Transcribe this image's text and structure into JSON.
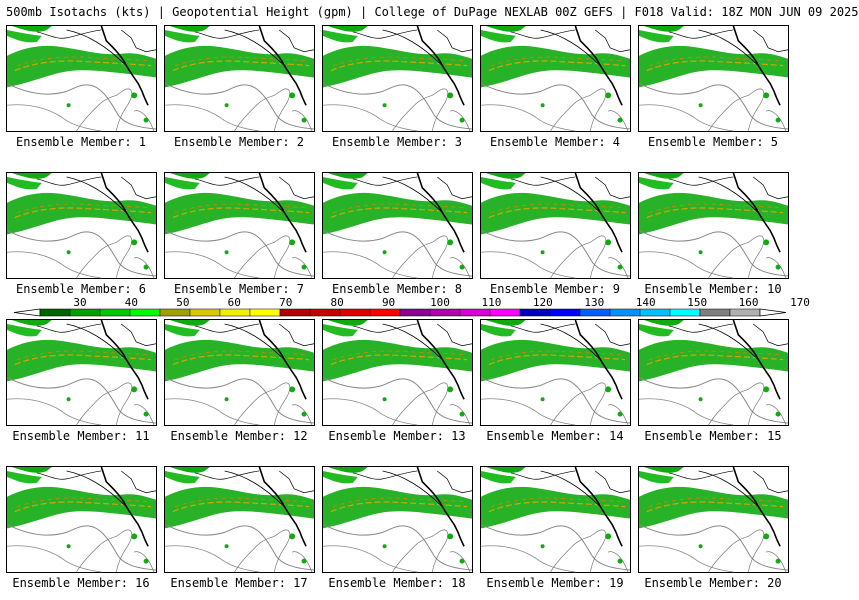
{
  "header": {
    "title": "500mb Isotachs (kts) | Geopotential Height (gpm) | College of DuPage NEXLAB   00Z GEFS | F018 Valid: 18Z MON JUN 09 2025"
  },
  "members": [
    {
      "label": "Ensemble Member: 1"
    },
    {
      "label": "Ensemble Member: 2"
    },
    {
      "label": "Ensemble Member: 3"
    },
    {
      "label": "Ensemble Member: 4"
    },
    {
      "label": "Ensemble Member: 5"
    },
    {
      "label": "Ensemble Member: 6"
    },
    {
      "label": "Ensemble Member: 7"
    },
    {
      "label": "Ensemble Member: 8"
    },
    {
      "label": "Ensemble Member: 9"
    },
    {
      "label": "Ensemble Member: 10"
    },
    {
      "label": "Ensemble Member: 11"
    },
    {
      "label": "Ensemble Member: 12"
    },
    {
      "label": "Ensemble Member: 13"
    },
    {
      "label": "Ensemble Member: 14"
    },
    {
      "label": "Ensemble Member: 15"
    },
    {
      "label": "Ensemble Member: 16"
    },
    {
      "label": "Ensemble Member: 17"
    },
    {
      "label": "Ensemble Member: 18"
    },
    {
      "label": "Ensemble Member: 19"
    },
    {
      "label": "Ensemble Member: 20"
    }
  ],
  "legend": {
    "ticks": [
      "30",
      "40",
      "50",
      "60",
      "70",
      "80",
      "90",
      "100",
      "110",
      "120",
      "130",
      "140",
      "150",
      "160",
      "170"
    ],
    "colors": [
      "#006400",
      "#00a000",
      "#00c800",
      "#00ff00",
      "#a0a000",
      "#d8c800",
      "#f0f000",
      "#ffff00",
      "#b40000",
      "#c80000",
      "#e00000",
      "#ff0000",
      "#900090",
      "#b000b0",
      "#d800d8",
      "#ff00ff",
      "#0000c0",
      "#0000ff",
      "#0060ff",
      "#0090ff",
      "#00c0ff",
      "#00ffff",
      "#808080",
      "#b0b0b0"
    ]
  },
  "map_colors": {
    "jet_green": "#11aa11",
    "jet_core": "#d4a500",
    "coast": "#000000",
    "height_contour": "#888888"
  }
}
